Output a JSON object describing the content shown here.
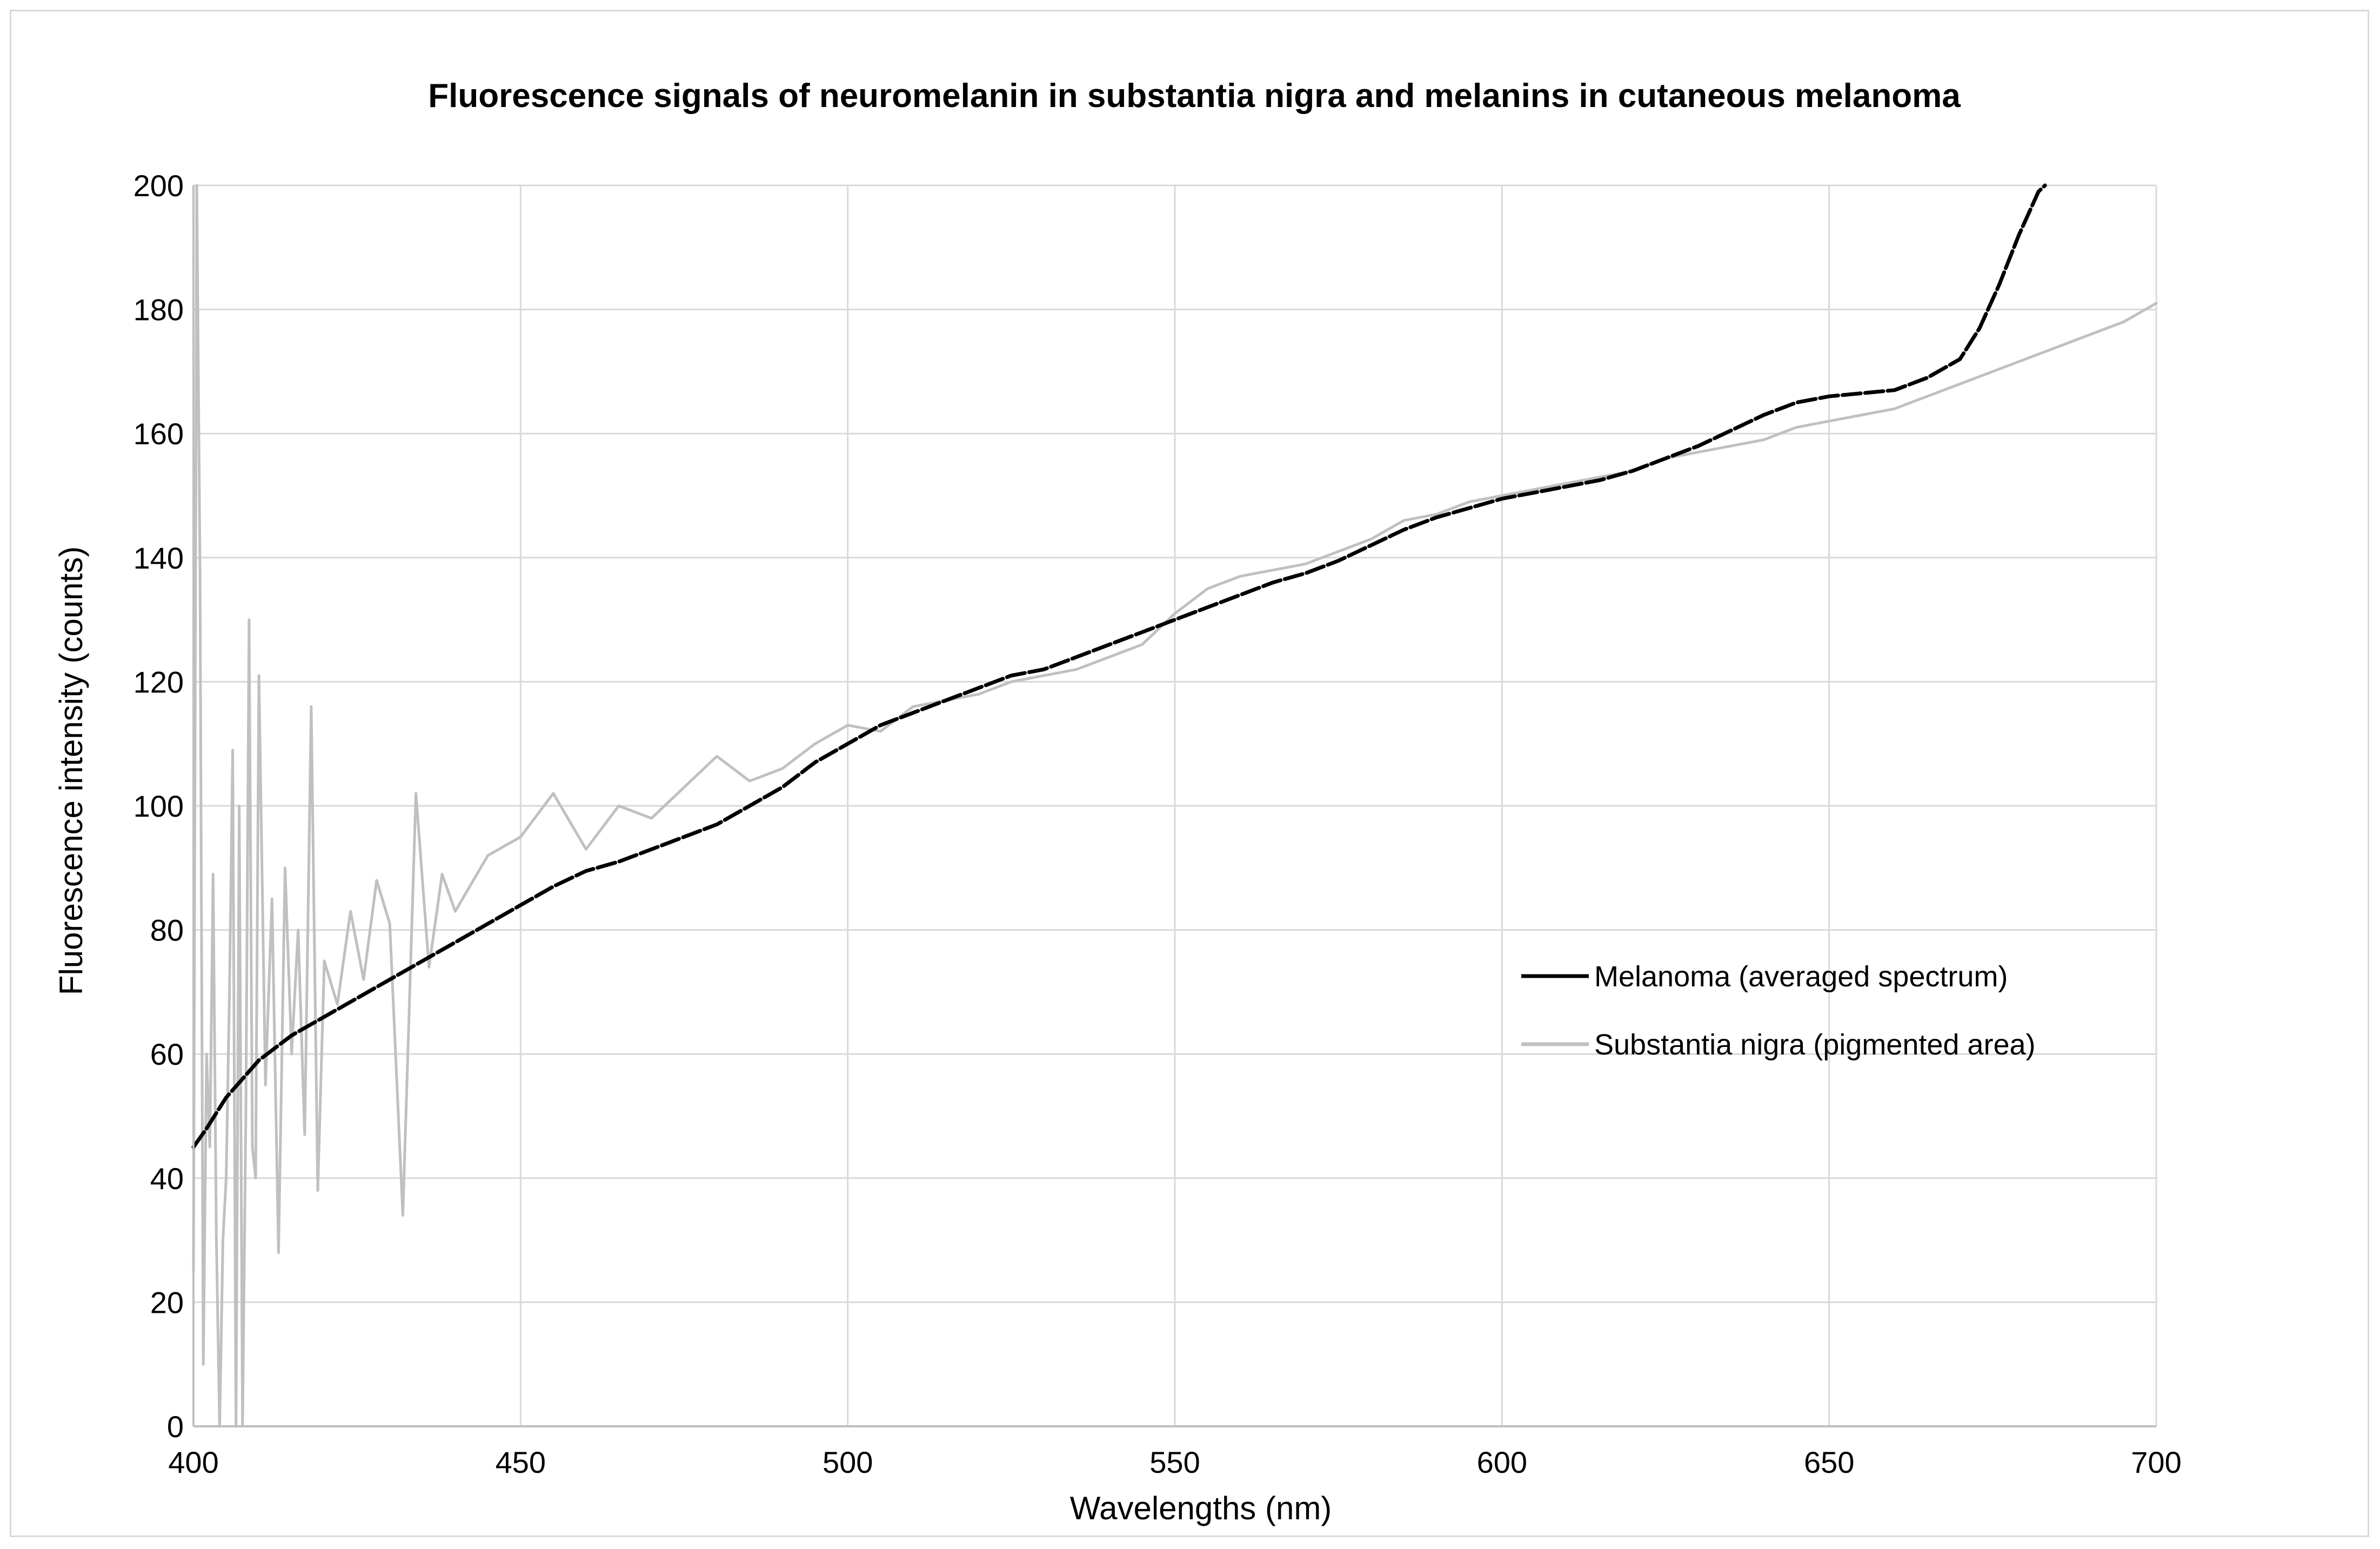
{
  "chart_data": {
    "type": "line",
    "title": "Fluorescence signals of neuromelanin in substantia nigra and melanins in cutaneous melanoma",
    "xlabel": "Wavelengths  (nm)",
    "ylabel": "Fluorescence intensity  (counts)",
    "xlim": [
      400,
      700
    ],
    "ylim": [
      0,
      200
    ],
    "x_ticks": [
      "400",
      "450",
      "500",
      "550",
      "600",
      "650",
      "700"
    ],
    "y_ticks": [
      "0",
      "20",
      "40",
      "60",
      "80",
      "100",
      "120",
      "140",
      "160",
      "180",
      "200"
    ],
    "grid": true,
    "legend_position": "right",
    "series": [
      {
        "name": "Melanoma (averaged spectrum)",
        "color": "#000000",
        "style": "dashed",
        "x": [
          400,
          402,
          405,
          410,
          415,
          420,
          425,
          430,
          435,
          440,
          445,
          450,
          455,
          460,
          465,
          470,
          475,
          480,
          485,
          490,
          495,
          500,
          505,
          510,
          515,
          520,
          525,
          530,
          535,
          540,
          545,
          550,
          555,
          560,
          565,
          570,
          575,
          580,
          585,
          590,
          595,
          600,
          605,
          610,
          615,
          620,
          625,
          630,
          635,
          640,
          645,
          650,
          655,
          660,
          665,
          670,
          673,
          676,
          679,
          682,
          683
        ],
        "y": [
          45,
          48,
          53,
          59,
          63,
          66,
          69,
          72,
          75,
          78,
          81,
          84,
          87,
          89.5,
          91,
          93,
          95,
          97,
          100,
          103,
          107,
          110,
          113,
          115,
          117,
          119,
          121,
          122,
          124,
          126,
          128,
          130,
          132,
          134,
          136,
          137.5,
          139.5,
          142,
          144.5,
          146.5,
          148,
          149.5,
          150.5,
          151.5,
          152.5,
          154,
          156,
          158,
          160.5,
          163,
          165,
          166,
          166.5,
          167,
          169,
          172,
          177,
          184,
          192,
          199,
          202
        ]
      },
      {
        "name": "Substantia nigra (pigmented area)",
        "color": "#c0c0c0",
        "style": "solid",
        "x": [
          400,
          400.5,
          401,
          401.5,
          402,
          402.5,
          403,
          403.5,
          404,
          404.5,
          405,
          405.5,
          406,
          406.5,
          407,
          407.5,
          408,
          408.5,
          409,
          409.5,
          410,
          411,
          412,
          413,
          414,
          415,
          416,
          417,
          418,
          419,
          420,
          422,
          424,
          426,
          428,
          430,
          432,
          434,
          436,
          438,
          440,
          445,
          450,
          455,
          460,
          465,
          470,
          475,
          480,
          485,
          490,
          495,
          500,
          505,
          510,
          515,
          520,
          525,
          530,
          535,
          540,
          545,
          550,
          555,
          560,
          565,
          570,
          575,
          580,
          585,
          590,
          595,
          600,
          605,
          610,
          615,
          620,
          625,
          630,
          635,
          640,
          645,
          650,
          655,
          660,
          665,
          670,
          675,
          680,
          685,
          690,
          695,
          700
        ],
        "y": [
          25,
          200,
          138,
          10,
          60,
          45,
          89,
          30,
          0,
          30,
          40,
          70,
          109,
          0,
          100,
          0,
          50,
          130,
          45,
          40,
          121,
          55,
          85,
          28,
          90,
          60,
          80,
          47,
          116,
          38,
          75,
          68,
          83,
          72,
          88,
          81,
          34,
          102,
          74,
          89,
          83,
          92,
          95,
          102,
          93,
          100,
          98,
          103,
          108,
          104,
          106,
          110,
          113,
          112,
          116,
          117,
          118,
          120,
          121,
          122,
          124,
          126,
          131,
          135,
          137,
          138,
          139,
          141,
          143,
          146,
          147,
          149,
          150,
          151,
          152,
          153,
          154,
          156,
          157,
          158,
          159,
          161,
          162,
          163,
          164,
          166,
          168,
          170,
          172,
          174,
          176,
          178,
          181
        ]
      }
    ]
  }
}
